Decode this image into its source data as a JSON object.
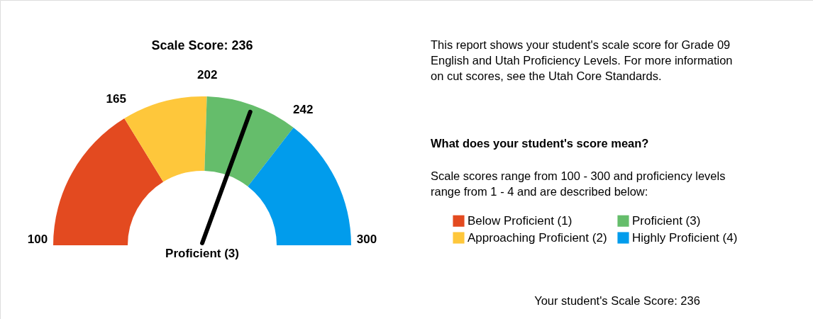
{
  "chart_data": {
    "type": "donut",
    "title": "Scale Score: 236",
    "categories": [
      "Below Proficient (1)",
      "Approaching Proficient (2)",
      "Proficient (3)",
      "Highly Proficient (4)"
    ],
    "values": [
      32.5,
      18.5,
      20,
      29
    ],
    "colors": [
      "#e34a20",
      "#fec73b",
      "#65bd6b",
      "#019cec"
    ],
    "needle": "Proficient (3)",
    "legend": "right",
    "annotations": [
      "100",
      "165",
      "202",
      "242",
      "300",
      "This report shows your student's scale score for Grade 09\nEnglish and Utah Proficiency Levels. For more information\non cut scores, see the Utah Core Standards.",
      "What does your student's score mean?",
      "Scale scores range from 100 - 300 and proficiency levels\nrange from 1 - 4 and are described below:",
      "Your student's Scale Score: 236"
    ]
  }
}
